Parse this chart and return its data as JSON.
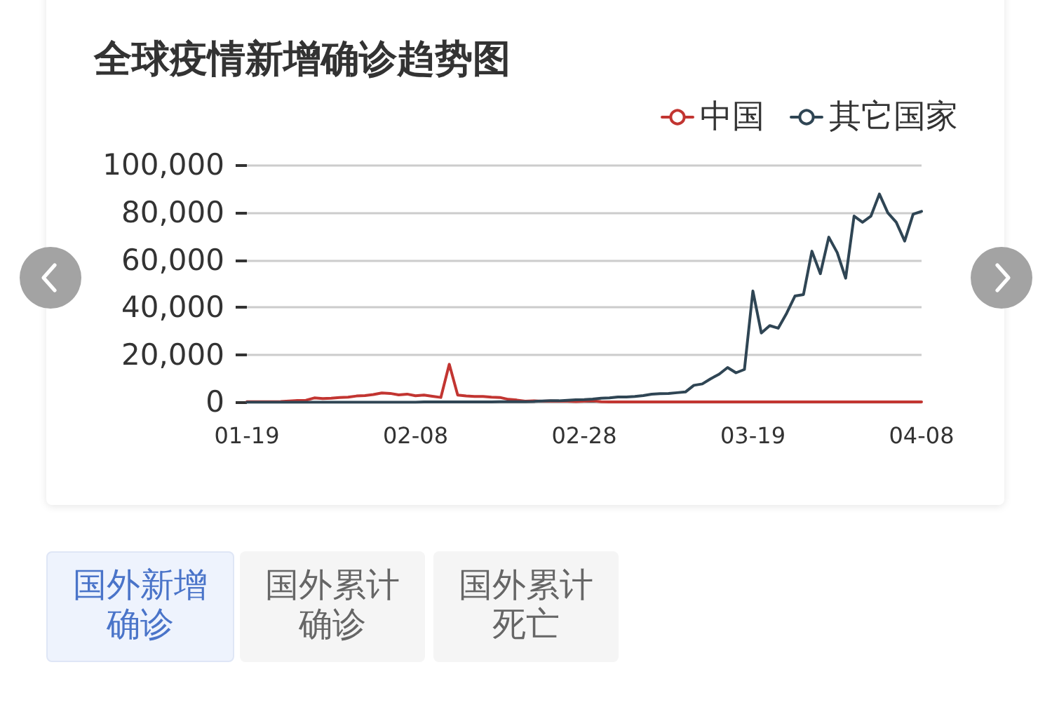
{
  "chart_data": {
    "type": "line",
    "title": "全球疫情新增确诊趋势图",
    "x": [
      "--01-19",
      "--01-20",
      "--01-21",
      "--01-22",
      "--01-23",
      "--01-24",
      "--01-25",
      "--01-26",
      "--01-27",
      "--01-28",
      "--01-29",
      "--01-30",
      "--01-31",
      "--02-01",
      "--02-02",
      "--02-03",
      "--02-04",
      "--02-05",
      "--02-06",
      "--02-07",
      "--02-08",
      "--02-09",
      "--02-10",
      "--02-11",
      "--02-12",
      "--02-13",
      "--02-14",
      "--02-15",
      "--02-16",
      "--02-17",
      "--02-18",
      "--02-19",
      "--02-20",
      "--02-21",
      "--02-22",
      "--02-23",
      "--02-24",
      "--02-25",
      "--02-26",
      "--02-27",
      "--02-28",
      "--02-29",
      "--03-01",
      "--03-02",
      "--03-03",
      "--03-04",
      "--03-05",
      "--03-06",
      "--03-07",
      "--03-08",
      "--03-09",
      "--03-10",
      "--03-11",
      "--03-12",
      "--03-13",
      "--03-14",
      "--03-15",
      "--03-16",
      "--03-17",
      "--03-18",
      "--03-19",
      "--03-20",
      "--03-21",
      "--03-22",
      "--03-23",
      "--03-24",
      "--03-25",
      "--03-26",
      "--03-27",
      "--03-28",
      "--03-29",
      "--03-30",
      "--03-31",
      "--04-01",
      "--04-02",
      "--04-03",
      "--04-04",
      "--04-05",
      "--04-06",
      "--04-07",
      "--04-08"
    ],
    "series": [
      {
        "name": "中国",
        "color": "#c23531",
        "values": [
          200,
          200,
          200,
          200,
          300,
          500,
          700,
          800,
          1800,
          1500,
          1700,
          2000,
          2100,
          2600,
          2800,
          3200,
          3900,
          3700,
          3100,
          3400,
          2700,
          3000,
          2500,
          2000,
          16000,
          3000,
          2600,
          2400,
          2400,
          2100,
          2000,
          1200,
          900,
          400,
          600,
          400,
          500,
          400,
          400,
          300,
          400,
          600,
          200,
          100,
          100,
          100,
          100,
          100,
          100,
          100,
          100,
          100,
          100,
          100,
          100,
          100,
          100,
          100,
          100,
          100,
          100,
          100,
          100,
          100,
          100,
          100,
          100,
          100,
          100,
          100,
          100,
          100,
          100,
          100,
          100,
          100,
          100,
          100,
          100,
          100,
          100
        ]
      },
      {
        "name": "其它国家",
        "color": "#2f4554",
        "values": [
          0,
          0,
          0,
          0,
          0,
          0,
          0,
          0,
          0,
          0,
          0,
          0,
          0,
          0,
          0,
          0,
          0,
          0,
          0,
          0,
          0,
          100,
          100,
          100,
          100,
          100,
          100,
          100,
          100,
          100,
          200,
          200,
          200,
          200,
          300,
          500,
          600,
          600,
          800,
          1000,
          1100,
          1300,
          1700,
          1800,
          2200,
          2200,
          2400,
          2800,
          3400,
          3600,
          3700,
          4000,
          4300,
          7100,
          7700,
          9900,
          11800,
          14600,
          12400,
          13800,
          46900,
          29200,
          32300,
          31200,
          37500,
          44800,
          45400,
          63700,
          54200,
          69600,
          63100,
          52300,
          78500,
          75900,
          78500,
          87800,
          79900,
          75900,
          68000,
          79300,
          80500
        ]
      }
    ],
    "xlim": [
      "--01-19",
      "--04-08"
    ],
    "xticks": [
      {
        "value": "--01-19",
        "label": "01-19"
      },
      {
        "value": "--02-08",
        "label": "02-08"
      },
      {
        "value": "--02-28",
        "label": "02-28"
      },
      {
        "value": "--03-19",
        "label": "03-19"
      },
      {
        "value": "--04-08",
        "label": "04-08"
      }
    ],
    "ylim": [
      0,
      100000
    ],
    "yticks": [
      0,
      {
        "value": 20000,
        "label": "20,000"
      },
      {
        "value": 40000,
        "label": "40,000"
      },
      {
        "value": 60000,
        "label": "60,000"
      },
      {
        "value": 80000,
        "label": "80,000"
      },
      {
        "value": 100000,
        "label": "100,000"
      }
    ],
    "grid": "y",
    "legend": "top right",
    "marker": "none",
    "line_style": "solid",
    "annotations": [
      "国外新增确诊",
      "国外累计确诊",
      "国外累计死亡"
    ]
  }
}
